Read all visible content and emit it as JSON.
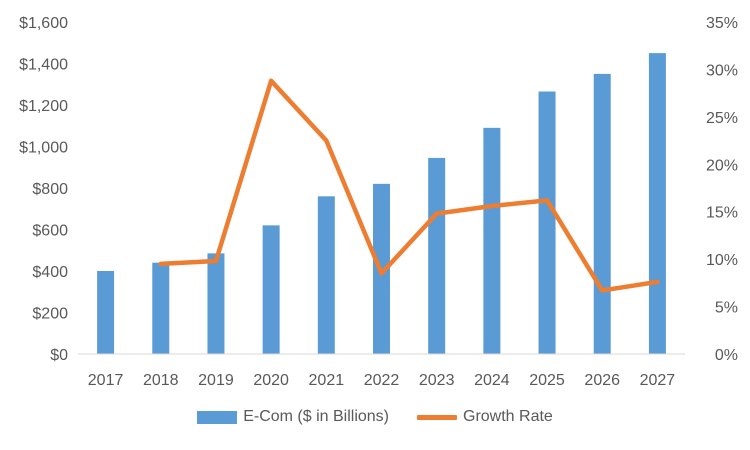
{
  "chart_data": {
    "type": "bar",
    "categories": [
      "2017",
      "2018",
      "2019",
      "2020",
      "2021",
      "2022",
      "2023",
      "2024",
      "2025",
      "2026",
      "2027"
    ],
    "series": [
      {
        "name": "E-Com ($ in Billions)",
        "type": "bar",
        "axis": "left",
        "color": "#5B9BD5",
        "values": [
          400,
          440,
          485,
          620,
          760,
          820,
          945,
          1090,
          1265,
          1350,
          1450
        ]
      },
      {
        "name": "Growth Rate",
        "type": "line",
        "axis": "right",
        "color": "#ED7D31",
        "values": [
          null,
          9.5,
          9.8,
          28.8,
          22.5,
          8.5,
          14.8,
          15.6,
          16.2,
          6.7,
          7.6
        ]
      }
    ],
    "y_left": {
      "min": 0,
      "max": 1600,
      "ticks": [
        "$0",
        "$200",
        "$400",
        "$600",
        "$800",
        "$1,000",
        "$1,200",
        "$1,400",
        "$1,600"
      ]
    },
    "y_right": {
      "min": 0,
      "max": 35,
      "ticks": [
        "0%",
        "5%",
        "10%",
        "15%",
        "20%",
        "25%",
        "30%",
        "35%"
      ]
    },
    "grid": false,
    "legend_position": "bottom"
  }
}
